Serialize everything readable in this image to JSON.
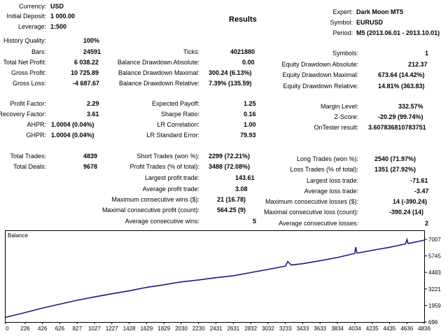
{
  "report_title": "Results",
  "header": {
    "currency_label": "Currency:",
    "currency_value": "USD",
    "deposit_label": "Initial Deposit:",
    "deposit_value": "1 000.00",
    "leverage_label": "Leverage:",
    "leverage_value": "1:500",
    "expert_label": "Expert:",
    "expert_value": "Dark Moon MT5",
    "symbol_label": "Symbol:",
    "symbol_value": "EURUSD",
    "period_label": "Period:",
    "period_value": "M5 (2013.06.01 - 2013.10.01)"
  },
  "stats": {
    "history_quality_label": "History Quality:",
    "history_quality_value": "100%",
    "bars_label": "Bars:",
    "bars_value": "24591",
    "ticks_label": "Ticks:",
    "ticks_value": "4021880",
    "symbols_label": "Symbols:",
    "symbols_value": "1",
    "total_net_profit_label": "Total Net Profit:",
    "total_net_profit_value": "6 038.22",
    "balance_dd_abs_label": "Balance Drawdown Absolute:",
    "balance_dd_abs_value": "0.00",
    "equity_dd_abs_label": "Equity Drawdown Absolute:",
    "equity_dd_abs_value": "212.37",
    "gross_profit_label": "Gross Profit:",
    "gross_profit_value": "10 725.89",
    "balance_dd_max_label": "Balance Drawdown Maximal:",
    "balance_dd_max_value": "300.24 (6.13%)",
    "equity_dd_max_label": "Equity Drawdown Maximal:",
    "equity_dd_max_value": "673.64 (14.42%)",
    "gross_loss_label": "Gross Loss:",
    "gross_loss_value": "-4 687.67",
    "balance_dd_rel_label": "Balance Drawdown Relative:",
    "balance_dd_rel_value": "7.39% (135.59)",
    "equity_dd_rel_label": "Equity Drawdown Relative:",
    "equity_dd_rel_value": "14.81% (363.83)",
    "profit_factor_label": "Profit Factor:",
    "profit_factor_value": "2.29",
    "expected_payoff_label": "Expected Payoff:",
    "expected_payoff_value": "1.25",
    "margin_level_label": "Margin Level:",
    "margin_level_value": "332.57%",
    "recovery_factor_label": "Recovery Factor:",
    "recovery_factor_value": "3.61",
    "sharpe_label": "Sharpe Ratio:",
    "sharpe_value": "0.16",
    "zscore_label": "Z-Score:",
    "zscore_value": "-20.29 (99.74%)",
    "ahpr_label": "AHPR:",
    "ahpr_value": "1.0004 (0.04%)",
    "lr_corr_label": "LR Correlation:",
    "lr_corr_value": "1.00",
    "ontester_label": "OnTester result:",
    "ontester_value": "3.607836810783751",
    "ghpr_label": "GHPR:",
    "ghpr_value": "1.0004 (0.04%)",
    "lr_std_label": "LR Standard Error:",
    "lr_std_value": "79.93",
    "total_trades_label": "Total Trades:",
    "total_trades_value": "4839",
    "short_trades_label": "Short Trades (won %):",
    "short_trades_value": "2299 (72.21%)",
    "long_trades_label": "Long Trades (won %):",
    "long_trades_value": "2540 (71.97%)",
    "total_deals_label": "Total Deals:",
    "total_deals_value": "9678",
    "profit_trades_label": "Profit Trades (% of total):",
    "profit_trades_value": "3488 (72.08%)",
    "loss_trades_label": "Loss Trades (% of total):",
    "loss_trades_value": "1351 (27.92%)",
    "largest_profit_label": "Largest profit trade:",
    "largest_profit_value": "143.61",
    "largest_loss_label": "Largest loss trade:",
    "largest_loss_value": "-71.61",
    "avg_profit_label": "Average profit trade:",
    "avg_profit_value": "3.08",
    "avg_loss_label": "Average loss trade:",
    "avg_loss_value": "-3.47",
    "max_cons_wins_label": "Maximum consecutive wins ($):",
    "max_cons_wins_value": "21 (16.78)",
    "max_cons_losses_label": "Maximum consecutive losses ($):",
    "max_cons_losses_value": "14 (-390.24)",
    "maximal_cons_profit_label": "Maximal consecutive profit (count):",
    "maximal_cons_profit_value": "564.25 (9)",
    "maximal_cons_loss_label": "Maximal consecutive loss (count):",
    "maximal_cons_loss_value": "-390.24 (14)",
    "avg_cons_wins_label": "Average consecutive wins:",
    "avg_cons_wins_value": "5",
    "avg_cons_losses_label": "Average consecutive losses:",
    "avg_cons_losses_value": "2"
  },
  "chart_data": {
    "type": "line",
    "title": "Balance",
    "line_color": "#1a1a8c",
    "x_ticks": [
      "0",
      "226",
      "426",
      "626",
      "827",
      "1027",
      "1227",
      "1428",
      "1629",
      "1829",
      "2030",
      "2230",
      "2431",
      "2631",
      "2832",
      "3032",
      "3233",
      "3433",
      "3633",
      "3834",
      "4034",
      "4235",
      "4435",
      "4636",
      "4836"
    ],
    "y_ticks": [
      "7007",
      "5745",
      "4483",
      "3221",
      "1959",
      "696"
    ],
    "xlim": [
      0,
      4836
    ],
    "ylim": [
      696,
      7007
    ],
    "series": [
      {
        "x": [
          0,
          226,
          426,
          626,
          827,
          1027,
          1227,
          1428,
          1629,
          1829,
          2030,
          2230,
          2431,
          2631,
          2832,
          3032,
          3233,
          3260,
          3300,
          3433,
          3633,
          3834,
          4034,
          4045,
          4060,
          4235,
          4435,
          4620,
          4636,
          4650,
          4836
        ],
        "y": [
          1050,
          1420,
          1760,
          2060,
          2360,
          2610,
          2850,
          3080,
          3340,
          3540,
          3760,
          3910,
          4080,
          4230,
          4470,
          4710,
          4970,
          5320,
          5050,
          5150,
          5380,
          5620,
          5940,
          6420,
          5960,
          6170,
          6400,
          6660,
          7000,
          6690,
          6950
        ]
      }
    ]
  }
}
